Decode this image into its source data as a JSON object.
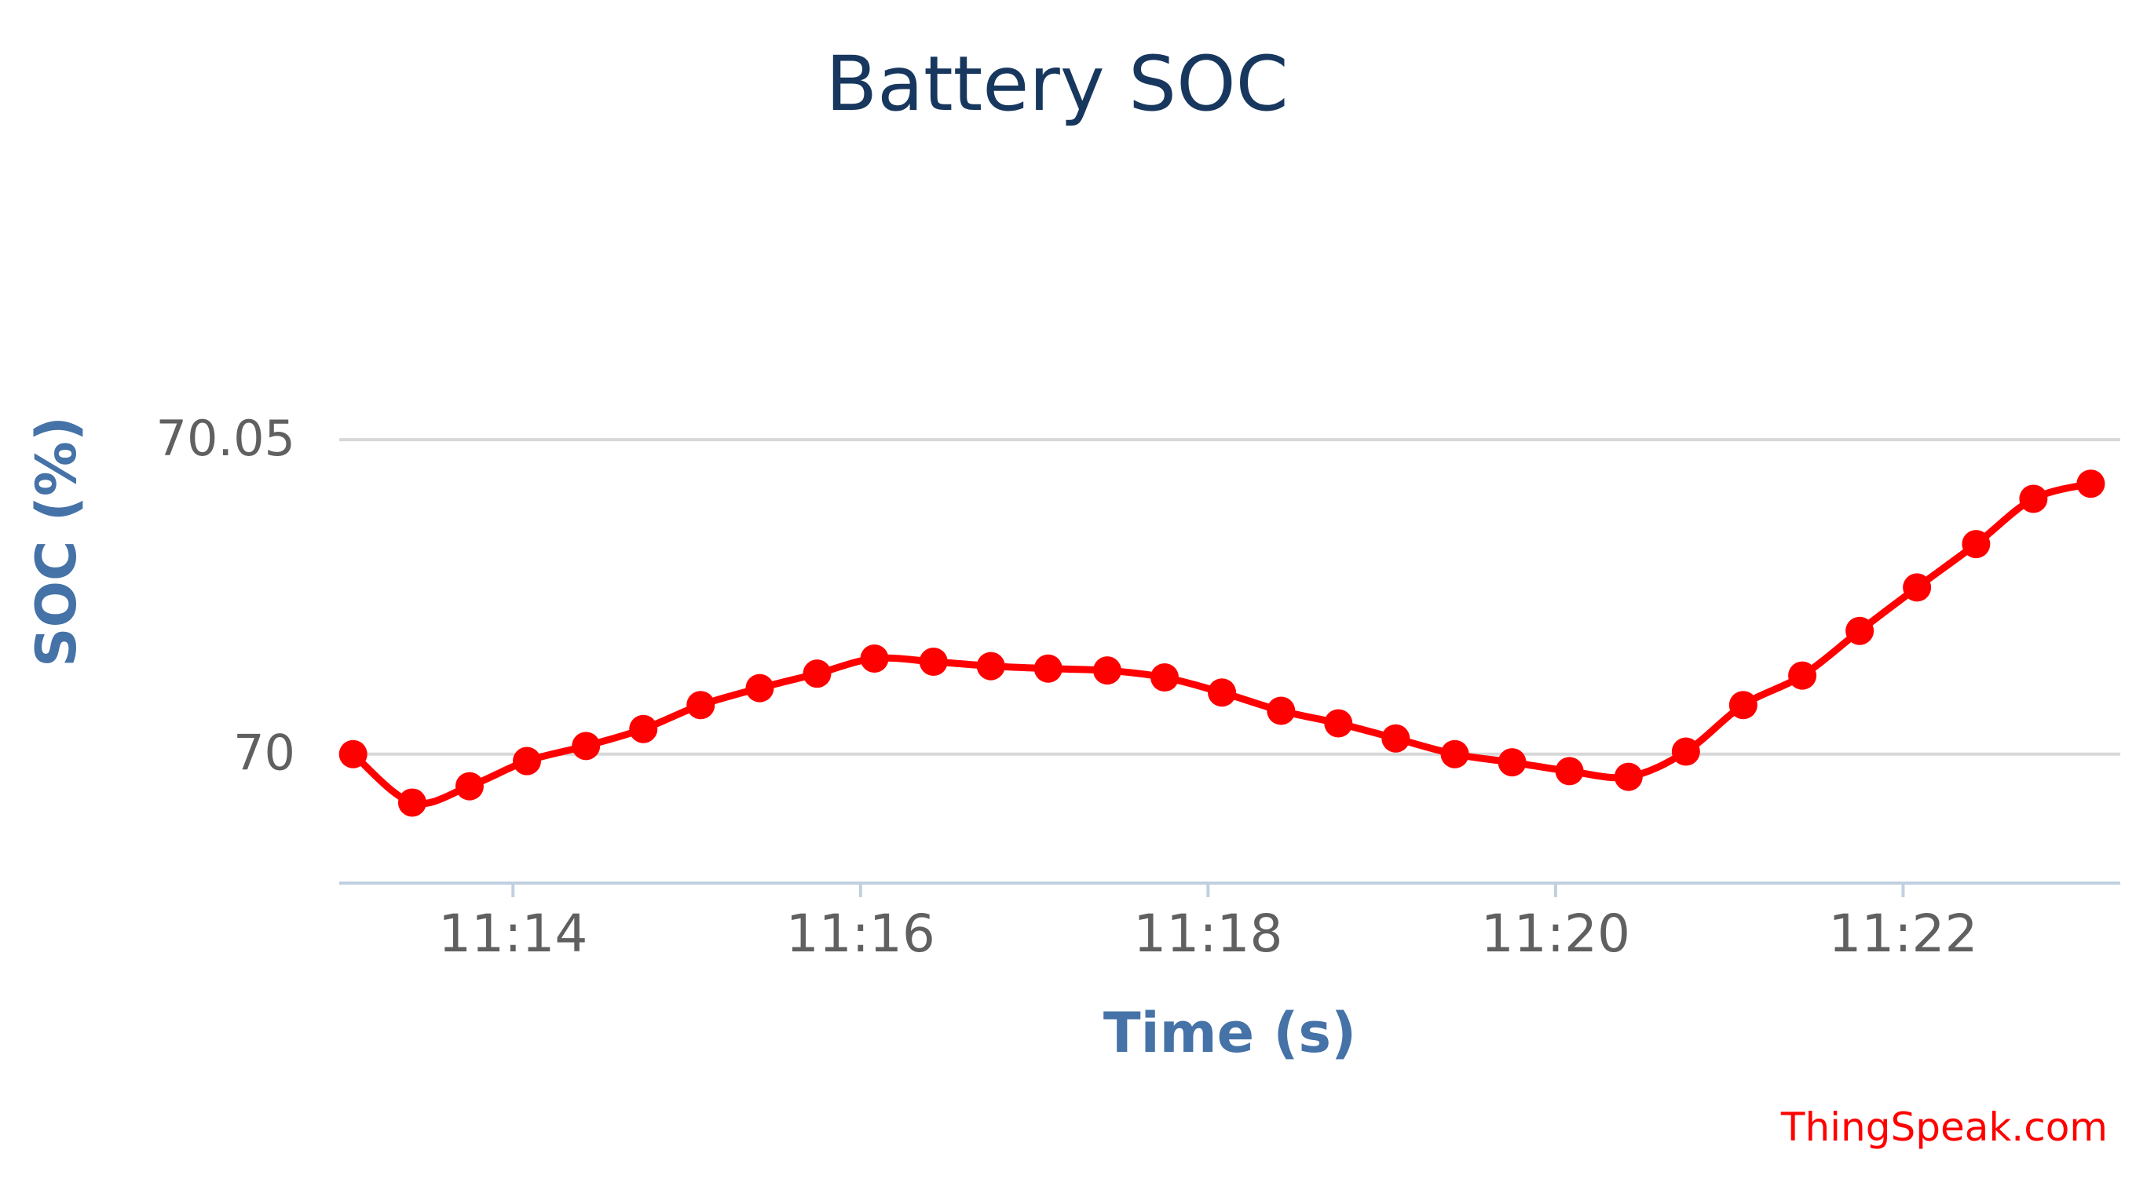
{
  "chart_data": {
    "type": "line",
    "title": "Battery SOC",
    "xlabel": "Time (s)",
    "ylabel": "SOC (%)",
    "credit": "ThingSpeak.com",
    "x_ticks": [
      "11:14",
      "11:16",
      "11:18",
      "11:20",
      "11:22"
    ],
    "x_tick_minutes": [
      14,
      16,
      18,
      20,
      22
    ],
    "xlim_minutes": [
      13.0,
      23.25
    ],
    "y_ticks": [
      70,
      70.05
    ],
    "y_tick_labels": [
      "70",
      "70.05"
    ],
    "ylim": [
      69.9795,
      70.06
    ],
    "grid": true,
    "legend": "none",
    "colors": {
      "series": "#ff0000",
      "title": "#17375e",
      "axis_title": "#4572a7",
      "tick_label": "#606060",
      "grid": "#d8d8d8",
      "axis_line": "#c0d0e0",
      "credit": "#ff0000"
    },
    "series": [
      {
        "x_minutes": [
          13.08,
          13.42,
          13.75,
          14.08,
          14.42,
          14.75,
          15.08,
          15.42,
          15.75,
          16.08,
          16.42,
          16.75,
          17.08,
          17.42,
          17.75,
          18.08,
          18.42,
          18.75,
          19.08,
          19.42,
          19.75,
          20.08,
          20.42,
          20.75,
          21.08,
          21.42,
          21.75,
          22.08,
          22.42,
          22.75,
          23.08
        ],
        "y": [
          70.0,
          69.9923,
          69.9949,
          69.9989,
          70.0013,
          70.004,
          70.0078,
          70.0105,
          70.0128,
          70.0152,
          70.0147,
          70.014,
          70.0136,
          70.0133,
          70.0122,
          70.0098,
          70.0069,
          70.0049,
          70.0025,
          70.0,
          69.9987,
          69.9973,
          69.9964,
          70.0004,
          70.0078,
          70.0125,
          70.0196,
          70.0265,
          70.0334,
          70.0406,
          70.043
        ]
      }
    ]
  }
}
